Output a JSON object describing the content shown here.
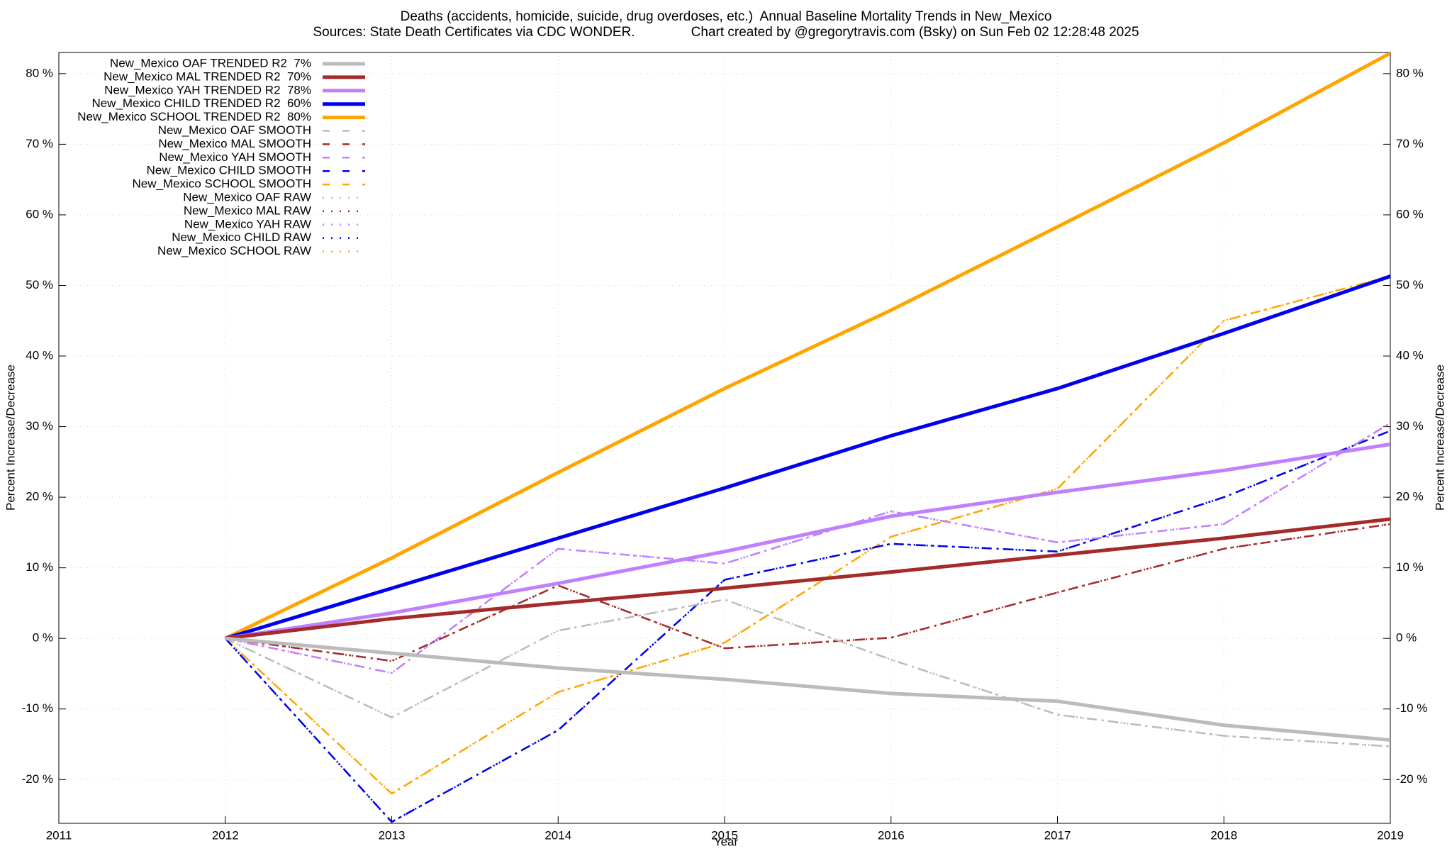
{
  "chart_data": {
    "type": "line",
    "title": "Deaths (accidents, homicide, suicide, drug overdoses, etc.)  Annual Baseline Mortality Trends in New_Mexico",
    "subtitle": "Sources: State Death Certificates via CDC WONDER.               Chart created by @gregorytravis.com (Bsky) on Sun Feb 02 12:28:48 2025",
    "x_label": "Year",
    "y_label": "Percent Increase/Decrease",
    "y2_label": "Percent Increase/Decrease",
    "x": [
      2011,
      2012,
      2013,
      2014,
      2015,
      2016,
      2017,
      2018,
      2019
    ],
    "xlim": [
      2011,
      2019
    ],
    "xticks": [
      2011,
      2012,
      2013,
      2014,
      2015,
      2016,
      2017,
      2018,
      2019
    ],
    "ylim": [
      -26.2,
      83
    ],
    "yticks": [
      {
        "value": -20,
        "label": "-20 %"
      },
      {
        "value": -10,
        "label": "-10 %"
      },
      {
        "value": 0,
        "label": "0 %"
      },
      {
        "value": 10,
        "label": "10 %"
      },
      {
        "value": 20,
        "label": "20 %"
      },
      {
        "value": 30,
        "label": "30 %"
      },
      {
        "value": 40,
        "label": "40 %"
      },
      {
        "value": 50,
        "label": "50 %"
      },
      {
        "value": 60,
        "label": "60 %"
      },
      {
        "value": 70,
        "label": "70 %"
      },
      {
        "value": 80,
        "label": "80 %"
      }
    ],
    "y2lim": [
      -26.2,
      83
    ],
    "y2ticks": [
      {
        "value": -20,
        "label": "-20 %"
      },
      {
        "value": -10,
        "label": "-10 %"
      },
      {
        "value": 0,
        "label": "0 %"
      },
      {
        "value": 10,
        "label": "10 %"
      },
      {
        "value": 20,
        "label": "20 %"
      },
      {
        "value": 30,
        "label": "30 %"
      },
      {
        "value": 40,
        "label": "40 %"
      },
      {
        "value": 50,
        "label": "50 %"
      },
      {
        "value": 60,
        "label": "60 %"
      },
      {
        "value": 70,
        "label": "70 %"
      },
      {
        "value": 80,
        "label": "80 %"
      }
    ],
    "grid": true,
    "legend": "top-left",
    "series": [
      {
        "name": "New_Mexico OAF TRENDED R2  7%",
        "color": "#bbbbbb",
        "style": "solid",
        "values": [
          null,
          0,
          -2.1,
          -4.2,
          -5.8,
          -7.8,
          -8.9,
          -12.3,
          -14.4
        ]
      },
      {
        "name": "New_Mexico MAL TRENDED R2  70%",
        "color": "#a52a2a",
        "style": "solid",
        "values": [
          null,
          0,
          2.8,
          5,
          7.1,
          9.4,
          11.8,
          14.2,
          16.9
        ]
      },
      {
        "name": "New_Mexico YAH TRENDED R2  78%",
        "color": "#bf7fff",
        "style": "solid",
        "values": [
          null,
          0,
          3.6,
          7.8,
          12.3,
          17.3,
          20.7,
          23.8,
          27.5
        ]
      },
      {
        "name": "New_Mexico CHILD TRENDED R2  60%",
        "color": "#0000ee",
        "style": "solid",
        "values": [
          null,
          0,
          7.1,
          14.2,
          21.3,
          28.7,
          35.4,
          43.2,
          51.3
        ]
      },
      {
        "name": "New_Mexico SCHOOL TRENDED R2  80%",
        "color": "#ffa500",
        "style": "solid",
        "values": [
          null,
          0,
          11.4,
          23.5,
          35.4,
          46.5,
          58.3,
          70.2,
          82.9
        ]
      },
      {
        "name": "New_Mexico OAF SMOOTH",
        "color": "#bbbbbb",
        "style": "dashdot",
        "values": [
          null,
          0,
          -11.2,
          1.1,
          5.5,
          -3.0,
          -10.8,
          -13.8,
          -15.3
        ]
      },
      {
        "name": "New_Mexico MAL SMOOTH",
        "color": "#a52a2a",
        "style": "dashdot",
        "values": [
          null,
          0,
          -3.2,
          7.5,
          -1.4,
          0.1,
          6.5,
          12.7,
          16.2
        ]
      },
      {
        "name": "New_Mexico YAH SMOOTH",
        "color": "#bf7fff",
        "style": "dashdot",
        "values": [
          null,
          0,
          -4.9,
          12.7,
          10.6,
          18.0,
          13.6,
          16.2,
          30.5
        ]
      },
      {
        "name": "New_Mexico CHILD SMOOTH",
        "color": "#0000ee",
        "style": "dashdot",
        "values": [
          null,
          0,
          -26,
          -13.0,
          8.3,
          13.4,
          12.3,
          20.0,
          29.4
        ]
      },
      {
        "name": "New_Mexico SCHOOL SMOOTH",
        "color": "#ffa500",
        "style": "dashdot",
        "values": [
          null,
          0,
          -22,
          -7.6,
          -0.6,
          14.4,
          21.2,
          45.0,
          51.3
        ]
      },
      {
        "name": "New_Mexico OAF RAW",
        "color": "#bbbbbb",
        "style": "dotted",
        "values": [
          null,
          0,
          -11.2,
          1.1,
          5.5,
          -3.0,
          -10.8,
          -13.8,
          -15.3
        ]
      },
      {
        "name": "New_Mexico MAL RAW",
        "color": "#a52a2a",
        "style": "dotted",
        "values": [
          null,
          0,
          -3.2,
          7.5,
          -1.4,
          0.1,
          6.5,
          12.7,
          16.2
        ]
      },
      {
        "name": "New_Mexico YAH RAW",
        "color": "#bf7fff",
        "style": "dotted",
        "values": [
          null,
          0,
          -4.9,
          12.7,
          10.6,
          18.0,
          13.6,
          16.2,
          30.5
        ]
      },
      {
        "name": "New_Mexico CHILD RAW",
        "color": "#0000ee",
        "style": "dotted",
        "values": [
          null,
          0,
          -26,
          -13.0,
          8.3,
          13.4,
          12.3,
          20.0,
          29.4
        ]
      },
      {
        "name": "New_Mexico SCHOOL RAW",
        "color": "#ffa500",
        "style": "dotted",
        "values": [
          null,
          0,
          -22,
          -7.6,
          -0.6,
          14.4,
          21.2,
          45.0,
          51.3
        ]
      }
    ]
  }
}
